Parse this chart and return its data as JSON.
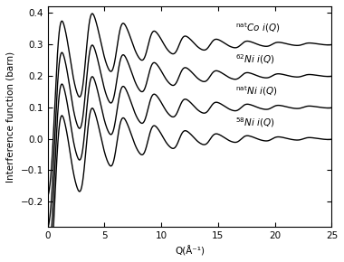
{
  "title": "",
  "xlabel": "Q(Å⁻¹)",
  "ylabel": "Interference function (barn)",
  "xlim": [
    0,
    25
  ],
  "ylim": [
    -0.28,
    0.42
  ],
  "yticks": [
    -0.2,
    -0.1,
    0.0,
    0.1,
    0.2,
    0.3,
    0.4
  ],
  "xticks": [
    0,
    5,
    10,
    15,
    20,
    25
  ],
  "offsets": [
    0.0,
    0.1,
    0.2,
    0.3
  ],
  "labels": [
    "$^{58}$Ni $i(Q)$",
    "$^{\\mathrm{nat}}$Ni $i(Q)$",
    "$^{62}$Ni $i(Q)$",
    "$^{\\mathrm{nat}}$Co $i(Q)$"
  ],
  "background_color": "#ffffff",
  "line_color": "#000000",
  "linewidth": 1.0,
  "fontsize_labels": 7.5,
  "fontsize_ticks": 7.5
}
